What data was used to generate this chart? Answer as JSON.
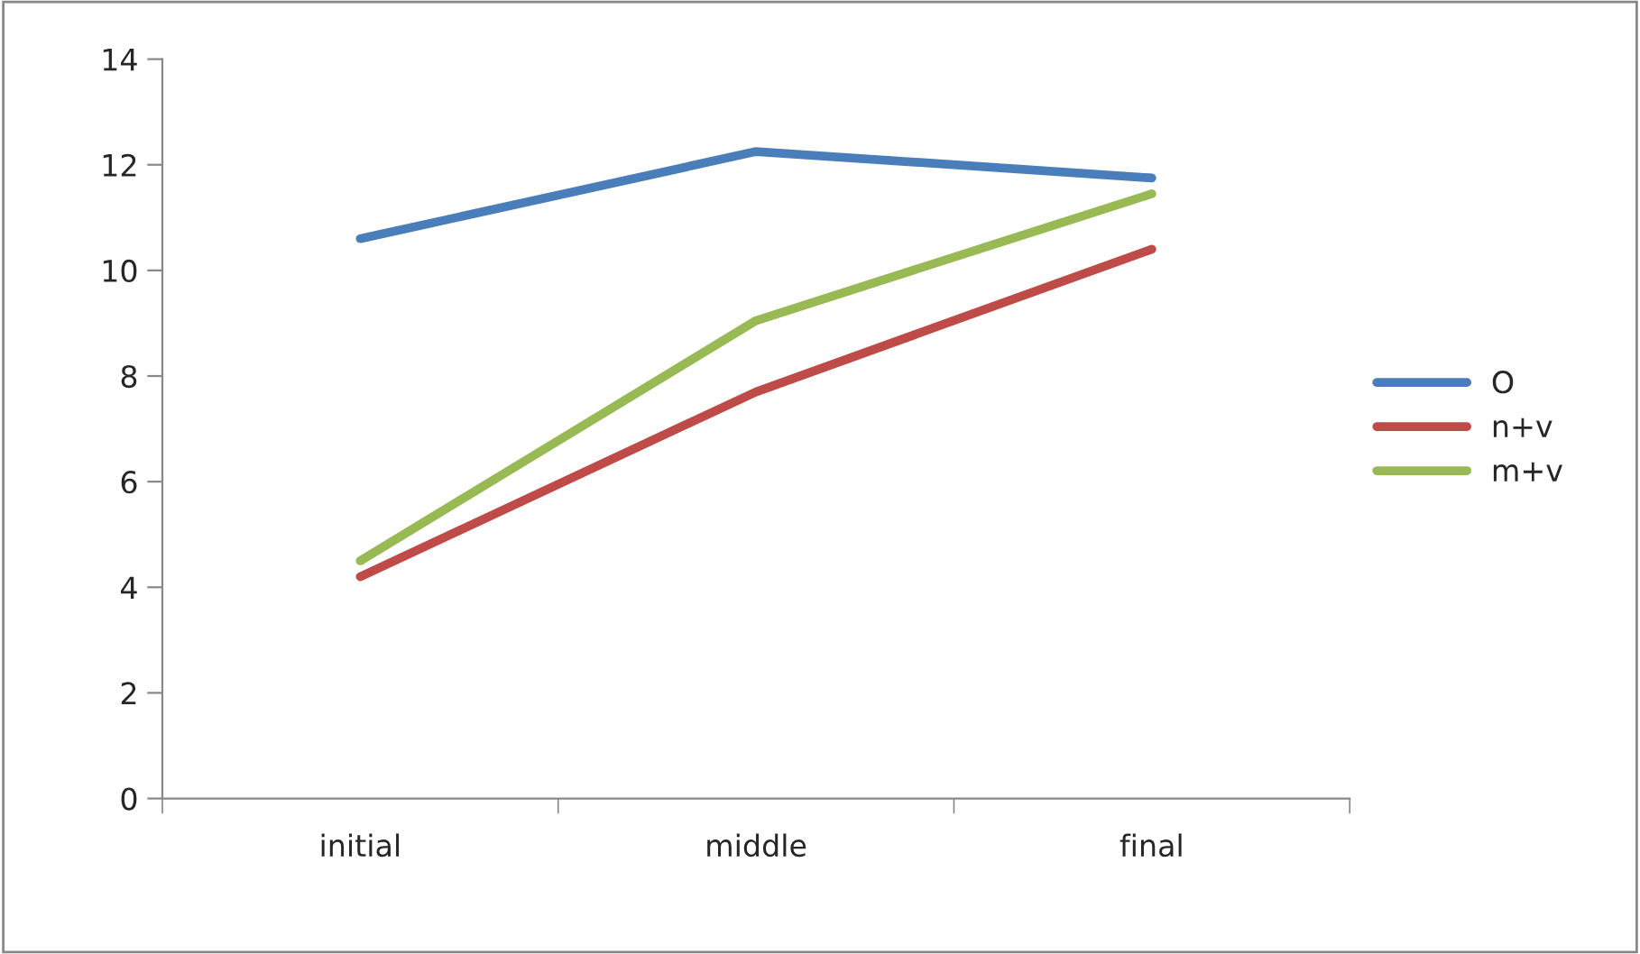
{
  "chart_data": {
    "type": "line",
    "categories": [
      "initial",
      "middle",
      "final"
    ],
    "series": [
      {
        "name": "O",
        "color": "#4a7ebb",
        "values": [
          10.6,
          12.25,
          11.75
        ]
      },
      {
        "name": "n+v",
        "color": "#be4b48",
        "values": [
          4.2,
          7.7,
          10.4
        ]
      },
      {
        "name": "m+v",
        "color": "#98b954",
        "values": [
          4.5,
          9.05,
          11.45
        ]
      }
    ],
    "ylim": [
      0,
      14
    ],
    "yticks": [
      0,
      2,
      4,
      6,
      8,
      10,
      12,
      14
    ],
    "grid": false,
    "legend": "right",
    "marker": "none",
    "line_style": "solid"
  }
}
